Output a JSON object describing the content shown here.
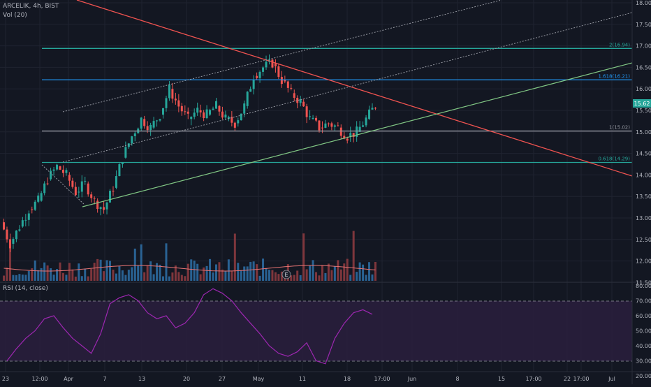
{
  "header": {
    "symbol_line": "ARCELIK, 4h, BIST",
    "vol_label": "Vol (20)",
    "rsi_label": "RSI (14, close)",
    "last_price": "15.62"
  },
  "price_axis": {
    "ticks": [
      "18.00",
      "17.50",
      "17.00",
      "16.50",
      "16.00",
      "15.50",
      "15.00",
      "14.50",
      "14.00",
      "13.50",
      "13.00",
      "12.50",
      "12.00",
      "11.50"
    ]
  },
  "rsi_axis": {
    "ticks": [
      "80.00",
      "70.00",
      "60.00",
      "50.00",
      "40.00",
      "30.00",
      "20.00"
    ]
  },
  "time_axis": {
    "ticks": [
      "23",
      "12:00",
      "Apr",
      "7",
      "13",
      "20",
      "27",
      "May",
      "11",
      "18",
      "17:00",
      "Jun",
      "8",
      "15",
      "17:00",
      "22",
      "17:00",
      "Jul"
    ]
  },
  "fib_levels": [
    {
      "label": "2(16.94)",
      "value": 16.94,
      "color": "#26a69a"
    },
    {
      "label": "1.618(16.21)",
      "value": 16.21,
      "color": "#2196f3"
    },
    {
      "label": "1(15.02)",
      "value": 15.02,
      "color": "#9598a1"
    },
    {
      "label": "0.618(14.29)",
      "value": 14.29,
      "color": "#26a69a"
    }
  ],
  "events": {
    "earnings_marker": "E"
  },
  "colors": {
    "background": "#131722",
    "up": "#26a69a",
    "down": "#ef5350",
    "rsi_line": "#9c27b0",
    "rsi_band": "#2a1f3d",
    "resistance_line": "#ef5350",
    "support_line": "#81c784",
    "channel_dots": "#9598a1"
  },
  "chart_data": [
    {
      "type": "candlestick",
      "title": "ARCELIK, 4h, BIST",
      "ylim": [
        11.45,
        18.05
      ],
      "series": [
        {
          "name": "price",
          "close_points": [
            12.4,
            12.8,
            13.2,
            13.4,
            13.9,
            14.2,
            14.0,
            13.6,
            13.8,
            13.4,
            13.2,
            13.7,
            14.4,
            14.9,
            15.3,
            15.1,
            15.4,
            16.0,
            15.6,
            15.3,
            15.5,
            15.4,
            15.6,
            15.3,
            15.2,
            15.6,
            16.3,
            16.5,
            16.6,
            16.2,
            15.9,
            15.7,
            15.3,
            15.1,
            15.2,
            15.1,
            14.9,
            15.0,
            15.3,
            15.62
          ]
        }
      ]
    },
    {
      "type": "bar",
      "title": "Vol (20)",
      "series": [
        {
          "name": "volume"
        }
      ]
    },
    {
      "type": "line",
      "title": "RSI (14, close)",
      "ylim": [
        20,
        80
      ],
      "series": [
        {
          "name": "RSI",
          "values": [
            30,
            38,
            45,
            50,
            58,
            60,
            52,
            45,
            40,
            35,
            48,
            68,
            72,
            74,
            70,
            62,
            58,
            60,
            52,
            55,
            62,
            74,
            78,
            75,
            70,
            62,
            55,
            48,
            40,
            35,
            33,
            36,
            42,
            30,
            28,
            45,
            55,
            62,
            64,
            61
          ]
        }
      ]
    }
  ]
}
